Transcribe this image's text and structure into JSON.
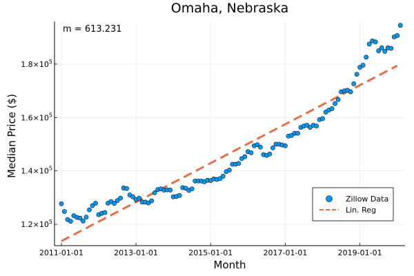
{
  "chart_data": {
    "type": "scatter",
    "title": "Omaha, Nebraska",
    "xlabel": "Month",
    "ylabel": "Median Price ($)",
    "x_tick_labels": [
      "2011-01-01",
      "2013-01-01",
      "2015-01-01",
      "2017-01-01",
      "2019-01-01"
    ],
    "y_ticks": [
      {
        "value": 120000,
        "mantissa": "1.2×10",
        "exp": "5"
      },
      {
        "value": 140000,
        "mantissa": "1.4×10",
        "exp": "5"
      },
      {
        "value": 160000,
        "mantissa": "1.6×10",
        "exp": "5"
      },
      {
        "value": 180000,
        "mantissa": "1.8×10",
        "exp": "5"
      }
    ],
    "annotation": "m = 613.231",
    "xlim": [
      "2011-01-01",
      "2019-12-01"
    ],
    "ylim": [
      112000,
      196000
    ],
    "grid": true,
    "legend_position": "bottom-right",
    "series": [
      {
        "name": "Zillow Data",
        "kind": "scatter",
        "color": "#009af9",
        "points": [
          {
            "x": "2011-01-01",
            "y": 127700
          },
          {
            "x": "2011-02-01",
            "y": 124800
          },
          {
            "x": "2011-03-01",
            "y": 121800
          },
          {
            "x": "2011-04-01",
            "y": 121100
          },
          {
            "x": "2011-05-01",
            "y": 123200
          },
          {
            "x": "2011-06-01",
            "y": 122600
          },
          {
            "x": "2011-07-01",
            "y": 122300
          },
          {
            "x": "2011-08-01",
            "y": 121200
          },
          {
            "x": "2011-09-01",
            "y": 122700
          },
          {
            "x": "2011-10-01",
            "y": 125400
          },
          {
            "x": "2011-11-01",
            "y": 127000
          },
          {
            "x": "2011-12-01",
            "y": 127900
          },
          {
            "x": "2012-01-01",
            "y": 123600
          },
          {
            "x": "2012-02-01",
            "y": 124100
          },
          {
            "x": "2012-03-01",
            "y": 124400
          },
          {
            "x": "2012-04-01",
            "y": 127900
          },
          {
            "x": "2012-05-01",
            "y": 128500
          },
          {
            "x": "2012-06-01",
            "y": 127800
          },
          {
            "x": "2012-07-01",
            "y": 128900
          },
          {
            "x": "2012-08-01",
            "y": 129800
          },
          {
            "x": "2012-09-01",
            "y": 133600
          },
          {
            "x": "2012-10-01",
            "y": 133400
          },
          {
            "x": "2012-11-01",
            "y": 131000
          },
          {
            "x": "2012-12-01",
            "y": 130300
          },
          {
            "x": "2013-01-01",
            "y": 129300
          },
          {
            "x": "2013-02-01",
            "y": 129800
          },
          {
            "x": "2013-03-01",
            "y": 128300
          },
          {
            "x": "2013-04-01",
            "y": 128300
          },
          {
            "x": "2013-05-01",
            "y": 128000
          },
          {
            "x": "2013-06-01",
            "y": 128800
          },
          {
            "x": "2013-07-01",
            "y": 131800
          },
          {
            "x": "2013-08-01",
            "y": 133000
          },
          {
            "x": "2013-09-01",
            "y": 133300
          },
          {
            "x": "2013-10-01",
            "y": 132800
          },
          {
            "x": "2013-11-01",
            "y": 132900
          },
          {
            "x": "2013-12-01",
            "y": 132800
          },
          {
            "x": "2014-01-01",
            "y": 130300
          },
          {
            "x": "2014-02-01",
            "y": 130400
          },
          {
            "x": "2014-03-01",
            "y": 130800
          },
          {
            "x": "2014-04-01",
            "y": 133700
          },
          {
            "x": "2014-05-01",
            "y": 133500
          },
          {
            "x": "2014-06-01",
            "y": 132700
          },
          {
            "x": "2014-07-01",
            "y": 133300
          },
          {
            "x": "2014-08-01",
            "y": 136200
          },
          {
            "x": "2014-09-01",
            "y": 136200
          },
          {
            "x": "2014-10-01",
            "y": 136200
          },
          {
            "x": "2014-11-01",
            "y": 135900
          },
          {
            "x": "2014-12-01",
            "y": 136500
          },
          {
            "x": "2015-01-01",
            "y": 136400
          },
          {
            "x": "2015-02-01",
            "y": 137000
          },
          {
            "x": "2015-03-01",
            "y": 136800
          },
          {
            "x": "2015-04-01",
            "y": 137100
          },
          {
            "x": "2015-05-01",
            "y": 138000
          },
          {
            "x": "2015-06-01",
            "y": 139700
          },
          {
            "x": "2015-07-01",
            "y": 140300
          },
          {
            "x": "2015-08-01",
            "y": 142500
          },
          {
            "x": "2015-09-01",
            "y": 142500
          },
          {
            "x": "2015-10-01",
            "y": 142800
          },
          {
            "x": "2015-11-01",
            "y": 144600
          },
          {
            "x": "2015-12-01",
            "y": 145300
          },
          {
            "x": "2016-01-01",
            "y": 147200
          },
          {
            "x": "2016-02-01",
            "y": 146800
          },
          {
            "x": "2016-03-01",
            "y": 149400
          },
          {
            "x": "2016-04-01",
            "y": 149800
          },
          {
            "x": "2016-05-01",
            "y": 148900
          },
          {
            "x": "2016-06-01",
            "y": 146100
          },
          {
            "x": "2016-07-01",
            "y": 145800
          },
          {
            "x": "2016-08-01",
            "y": 146300
          },
          {
            "x": "2016-09-01",
            "y": 148600
          },
          {
            "x": "2016-10-01",
            "y": 150000
          },
          {
            "x": "2016-11-01",
            "y": 150000
          },
          {
            "x": "2016-12-01",
            "y": 149700
          },
          {
            "x": "2017-01-01",
            "y": 149400
          },
          {
            "x": "2017-02-01",
            "y": 153000
          },
          {
            "x": "2017-03-01",
            "y": 153300
          },
          {
            "x": "2017-04-01",
            "y": 154100
          },
          {
            "x": "2017-05-01",
            "y": 154100
          },
          {
            "x": "2017-06-01",
            "y": 156300
          },
          {
            "x": "2017-07-01",
            "y": 156800
          },
          {
            "x": "2017-08-01",
            "y": 157100
          },
          {
            "x": "2017-09-01",
            "y": 156300
          },
          {
            "x": "2017-10-01",
            "y": 157100
          },
          {
            "x": "2017-11-01",
            "y": 156800
          },
          {
            "x": "2017-12-01",
            "y": 159200
          },
          {
            "x": "2018-01-01",
            "y": 159600
          },
          {
            "x": "2018-02-01",
            "y": 162000
          },
          {
            "x": "2018-03-01",
            "y": 162800
          },
          {
            "x": "2018-04-01",
            "y": 163300
          },
          {
            "x": "2018-05-01",
            "y": 165200
          },
          {
            "x": "2018-06-01",
            "y": 166700
          },
          {
            "x": "2018-07-01",
            "y": 169600
          },
          {
            "x": "2018-08-01",
            "y": 170000
          },
          {
            "x": "2018-09-01",
            "y": 170200
          },
          {
            "x": "2018-10-01",
            "y": 169600
          },
          {
            "x": "2018-11-01",
            "y": 172600
          },
          {
            "x": "2018-12-01",
            "y": 176200
          },
          {
            "x": "2019-01-01",
            "y": 178800
          },
          {
            "x": "2019-02-01",
            "y": 179600
          },
          {
            "x": "2019-03-01",
            "y": 182600
          },
          {
            "x": "2019-04-01",
            "y": 187500
          },
          {
            "x": "2019-05-01",
            "y": 188700
          },
          {
            "x": "2019-06-01",
            "y": 188300
          },
          {
            "x": "2019-07-01",
            "y": 185000
          },
          {
            "x": "2019-08-01",
            "y": 186100
          },
          {
            "x": "2019-09-01",
            "y": 184800
          },
          {
            "x": "2019-10-01",
            "y": 186100
          },
          {
            "x": "2019-11-01",
            "y": 185900
          },
          {
            "x": "2019-12-01",
            "y": 190200
          },
          {
            "x": "2020-01-01",
            "y": 190700
          },
          {
            "x": "2020-02-01",
            "y": 194500
          }
        ]
      },
      {
        "name": "Lin. Reg",
        "kind": "line",
        "style": "dashed",
        "color": "#e26f46",
        "points": [
          {
            "x": "2011-01-01",
            "y": 113700
          },
          {
            "x": "2020-01-01",
            "y": 179400
          }
        ]
      }
    ]
  }
}
